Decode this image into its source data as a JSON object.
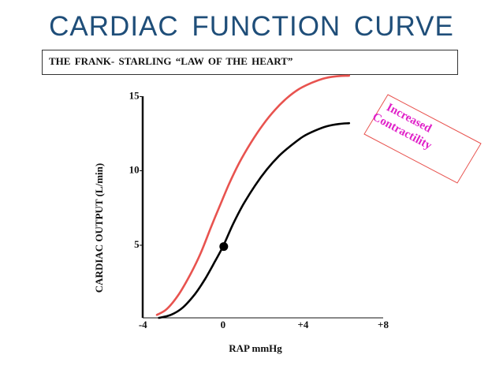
{
  "title": "CARDIAC  FUNCTION  CURVE",
  "subtitle": "THE  FRANK- STARLING “LAW  OF  THE  HEART”",
  "colors": {
    "title": "#1f4e79",
    "baseline_curve": "#000000",
    "increased_curve": "#e8534f",
    "annotation": "#e020c8",
    "annotation_border": "#e8534f"
  },
  "chart_data": {
    "type": "line",
    "xlabel": "RAP mmHg",
    "ylabel": "CARDIAC  OUTPUT  (L/min)",
    "xlim": [
      -4.6,
      8
    ],
    "ylim": [
      0,
      15.5
    ],
    "x_ticks": [
      {
        "value": -4,
        "label": "-4"
      },
      {
        "value": 0,
        "label": "0"
      },
      {
        "value": 4,
        "label": "+4"
      },
      {
        "value": 8,
        "label": "+8"
      }
    ],
    "y_ticks": [
      {
        "value": 5,
        "label": "5-"
      },
      {
        "value": 10,
        "label": "10-"
      },
      {
        "value": 15,
        "label": "15-"
      }
    ],
    "grid": false,
    "legend": "none",
    "series": [
      {
        "id": "baseline",
        "x": [
          -3.2,
          -2.6,
          -2.0,
          -1.4,
          -0.9,
          -0.4,
          0.0,
          0.5,
          1.0,
          1.6,
          2.2,
          2.8,
          3.4,
          4.0,
          4.6,
          5.2,
          5.8,
          6.3
        ],
        "y": [
          0.0,
          0.2,
          0.7,
          1.6,
          2.6,
          3.8,
          4.8,
          6.3,
          7.6,
          8.9,
          10.0,
          10.9,
          11.6,
          12.2,
          12.6,
          12.9,
          13.05,
          13.1
        ]
      },
      {
        "id": "increased",
        "x": [
          -3.3,
          -2.8,
          -2.2,
          -1.6,
          -1.1,
          -0.6,
          -0.2,
          0.3,
          0.8,
          1.4,
          2.0,
          2.6,
          3.2,
          3.8,
          4.4,
          5.0,
          5.6,
          6.3
        ],
        "y": [
          0.2,
          0.6,
          1.6,
          3.0,
          4.4,
          6.1,
          7.4,
          9.0,
          10.4,
          11.8,
          13.0,
          14.0,
          14.8,
          15.4,
          15.8,
          16.1,
          16.25,
          16.3
        ]
      }
    ],
    "points": [
      {
        "series": "baseline",
        "x": 0.0,
        "y": 4.8
      }
    ],
    "annotation": {
      "lines": [
        "Increased",
        "Contractility"
      ]
    }
  }
}
